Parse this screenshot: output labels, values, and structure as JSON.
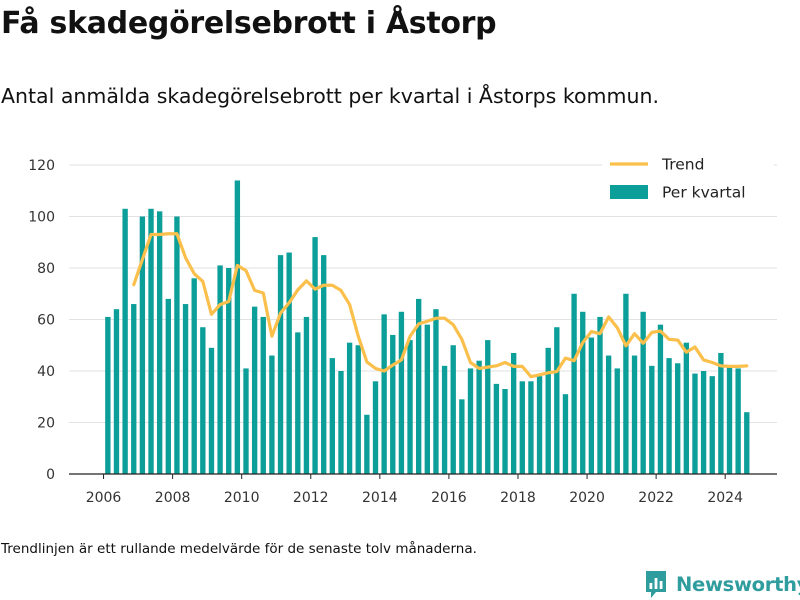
{
  "title": "Få skadegörelsebrott i Åstorp",
  "subtitle": "Antal anmälda skadegörelsebrott per kvartal i Åstorps kommun.",
  "footnote": "Trendlinjen är ett rullande medelvärde för de senaste tolv månaderna.",
  "brand": {
    "name": "Newsworthy",
    "icon": "newsworthy-chart-icon"
  },
  "colors": {
    "bar": "#0c9e98",
    "trend": "#fbbf4b",
    "grid": "#e2e2e2",
    "axis": "#222222",
    "brand": "#2f9c9e"
  },
  "chart_data": {
    "type": "bar",
    "x_start": 2006,
    "periods_per_year": 4,
    "xlim": [
      2005,
      2025.5
    ],
    "ylim": [
      0,
      120
    ],
    "yticks": [
      0,
      20,
      40,
      60,
      80,
      100,
      120
    ],
    "xticks": [
      2006,
      2008,
      2010,
      2012,
      2014,
      2016,
      2018,
      2020,
      2022,
      2024
    ],
    "grid": true,
    "legend_position": "top-right",
    "legend": {
      "trend": "Trend",
      "bars": "Per kvartal"
    },
    "series": [
      {
        "name": "Per kvartal",
        "type": "bar",
        "values": [
          61,
          64,
          103,
          66,
          100,
          103,
          102,
          68,
          100,
          66,
          76,
          57,
          49,
          81,
          80,
          114,
          41,
          65,
          61,
          46,
          85,
          86,
          55,
          61,
          92,
          85,
          45,
          40,
          51,
          50,
          23,
          36,
          62,
          54,
          63,
          52,
          68,
          58,
          64,
          42,
          50,
          29,
          41,
          44,
          52,
          35,
          33,
          47,
          36,
          36,
          38,
          49,
          57,
          31,
          70,
          63,
          53,
          61,
          46,
          41,
          70,
          46,
          63,
          42,
          58,
          45,
          43,
          51,
          39,
          40,
          38,
          47,
          42,
          41,
          24
        ]
      },
      {
        "name": "Trend",
        "type": "line",
        "start_index": 3,
        "values": [
          73.5,
          83.3,
          93.0,
          93.0,
          93.3,
          93.3,
          84.0,
          77.8,
          74.8,
          62.0,
          65.8,
          67.0,
          81.0,
          79.0,
          71.3,
          70.3,
          53.5,
          62.5,
          66.5,
          71.5,
          75.0,
          71.8,
          73.3,
          73.3,
          71.3,
          65.8,
          53.5,
          43.5,
          41.0,
          40.0,
          42.3,
          44.3,
          53.5,
          58.3,
          59.3,
          60.5,
          60.5,
          58.0,
          52.3,
          43.3,
          41.0,
          41.5,
          42.0,
          43.3,
          41.8,
          41.8,
          37.8,
          38.5,
          39.3,
          39.8,
          45.0,
          44.0,
          51.0,
          55.3,
          54.5,
          61.0,
          56.8,
          49.8,
          54.5,
          50.8,
          55.0,
          55.5,
          52.3,
          52.0,
          47.3,
          49.3,
          44.3,
          43.3,
          42.0,
          41.8,
          41.8,
          42.0
        ]
      }
    ]
  }
}
